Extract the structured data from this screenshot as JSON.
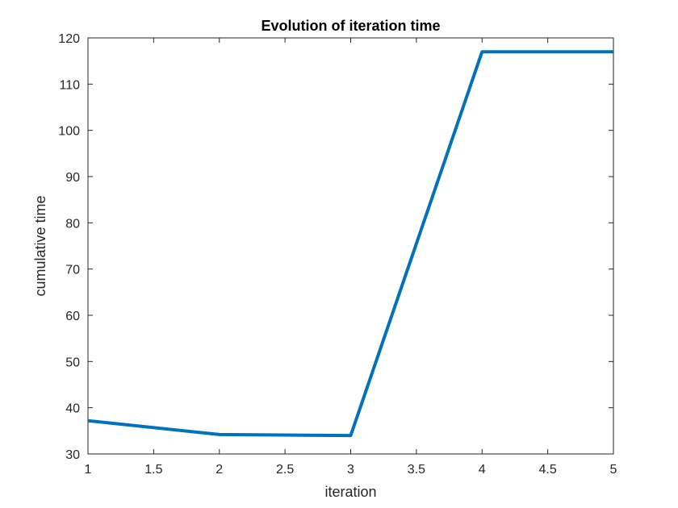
{
  "chart_data": {
    "type": "line",
    "title": "Evolution of iteration time",
    "xlabel": "iteration",
    "ylabel": "cumulative time",
    "xlim": [
      1,
      5
    ],
    "ylim": [
      30,
      120
    ],
    "x_ticks": [
      "1",
      "1.5",
      "2",
      "2.5",
      "3",
      "3.5",
      "4",
      "4.5",
      "5"
    ],
    "y_ticks": [
      "30",
      "40",
      "50",
      "60",
      "70",
      "80",
      "90",
      "100",
      "110",
      "120"
    ],
    "grid": false,
    "series": [
      {
        "x": [
          1,
          2,
          3,
          4,
          5
        ],
        "values": [
          37.2,
          34.2,
          34.0,
          117.0,
          117.0
        ],
        "color": "#0072BD"
      }
    ]
  }
}
